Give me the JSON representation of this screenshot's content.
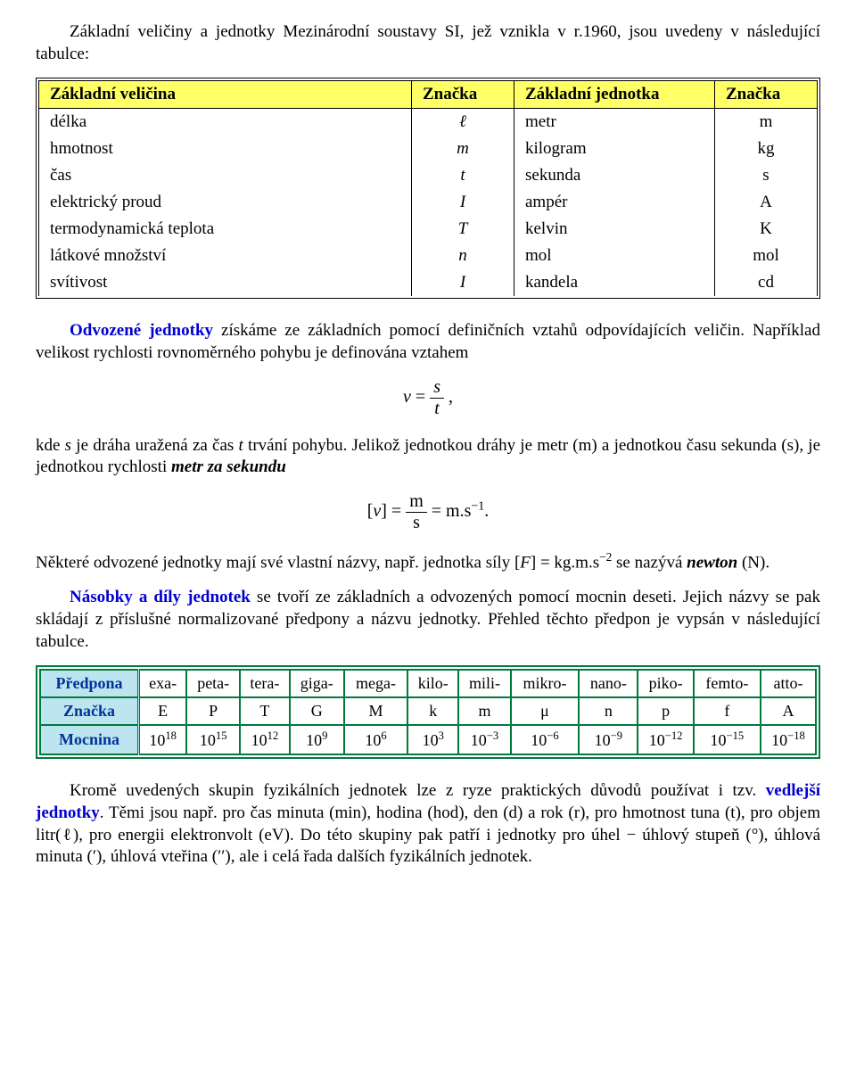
{
  "intro": {
    "text": "Základní veličiny a jednotky Mezinárodní soustavy SI, jež vznikla v r.1960, jsou uvedeny v následující tabulce:"
  },
  "table1": {
    "headers": [
      "Základní veličina",
      "Značka",
      "Základní jednotka",
      "Značka"
    ],
    "header_bg": "#ffff66",
    "border_color": "#000000",
    "rows": [
      {
        "q": "délka",
        "qs": "ℓ",
        "u": "metr",
        "us": "m"
      },
      {
        "q": "hmotnost",
        "qs": "m",
        "u": "kilogram",
        "us": "kg"
      },
      {
        "q": "čas",
        "qs": "t",
        "u": "sekunda",
        "us": "s"
      },
      {
        "q": "elektrický proud",
        "qs": "I",
        "u": "ampér",
        "us": "A"
      },
      {
        "q": "termodynamická teplota",
        "qs": "T",
        "u": "kelvin",
        "us": "K"
      },
      {
        "q": "látkové množství",
        "qs": "n",
        "u": "mol",
        "us": "mol"
      },
      {
        "q": "svítivost",
        "qs": "I",
        "u": "kandela",
        "us": "cd"
      }
    ]
  },
  "para_odvozene": {
    "lead": "Odvozené jednotky",
    "rest": " získáme ze základních pomocí definičních vztahů odpovídajících veličin. Například velikost rychlosti rovnoměrného pohybu je definována vztahem"
  },
  "formula_v": {
    "lhs": "v",
    "eq": "=",
    "num": "s",
    "den": "t",
    "tail": ","
  },
  "para_kde": {
    "pre": "kde ",
    "s": "s",
    "mid1": " je dráha uražená za čas ",
    "t": "t",
    "mid2": " trvání pohybu. Jelikož jednotkou dráhy je metr (m) a jednotkou času sekunda (s), je jednotkou rychlosti ",
    "metr": "metr za sekundu"
  },
  "formula_unit": {
    "lbracket": "[",
    "v": "v",
    "rbracket": "]",
    "eq": "=",
    "num": "m",
    "den": "s",
    "eq2": "=",
    "rhs": "m.s",
    "exp": "−1",
    "dot": "."
  },
  "para_newton": {
    "a": "Některé odvozené jednotky mají své vlastní názvy, např. jednotka síly [",
    "F": "F",
    "b": "] = kg.m.s",
    "exp": "−2",
    "c": " se nazývá ",
    "newton": "newton",
    "d": " (N)."
  },
  "para_nasobky": {
    "lead": "Násobky a díly jednotek",
    "rest": " se tvoří ze základních a odvozených pomocí mocnin deseti. Jejich názvy se pak skládají z příslušné normalizované předpony a názvu jednotky. Přehled těchto předpon je vypsán v následující tabulce."
  },
  "table2": {
    "border_color": "#007a3d",
    "label_bg": "#bde5ef",
    "label_color": "#003399",
    "row_labels": [
      "Předpona",
      "Značka",
      "Mocnina"
    ],
    "cols": [
      {
        "p": "exa-",
        "s": "E",
        "e": "18"
      },
      {
        "p": "peta-",
        "s": "P",
        "e": "15"
      },
      {
        "p": "tera-",
        "s": "T",
        "e": "12"
      },
      {
        "p": "giga-",
        "s": "G",
        "e": "9"
      },
      {
        "p": "mega-",
        "s": "M",
        "e": "6"
      },
      {
        "p": "kilo-",
        "s": "k",
        "e": "3"
      },
      {
        "p": "mili-",
        "s": "m",
        "e": "−3"
      },
      {
        "p": "mikro-",
        "s": "μ",
        "e": "−6"
      },
      {
        "p": "nano-",
        "s": "n",
        "e": "−9"
      },
      {
        "p": "piko-",
        "s": "p",
        "e": "−12"
      },
      {
        "p": "femto-",
        "s": "f",
        "e": "−15"
      },
      {
        "p": "atto-",
        "s": "A",
        "e": "−18"
      }
    ]
  },
  "para_final": {
    "a": "Kromě uvedených skupin fyzikálních jednotek lze z ryze  praktických důvodů používat i tzv. ",
    "vedlejsi": "vedlejší jednotky",
    "b": ". Těmi jsou např. pro čas minuta (min), hodina (hod), den (d) a rok (r), pro hmotnost tuna (t), pro objem litr(ℓ), pro energii elektronvolt (eV). Do této skupiny pak patří i jednotky pro úhel − úhlový stupeň (°), úhlová minuta (′), úhlová vteřina (′′), ale i  celá řada dalších fyzikálních jednotek."
  }
}
